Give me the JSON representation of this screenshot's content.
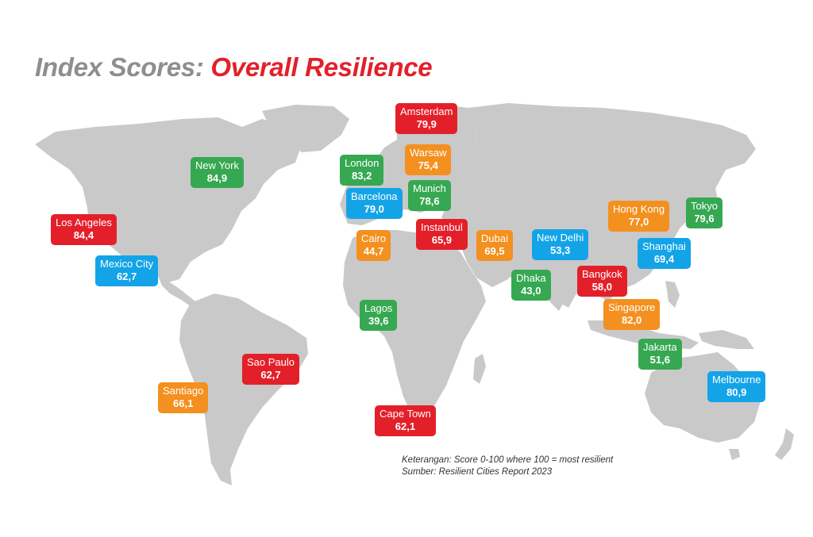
{
  "title": {
    "part1": "Index Scores:",
    "part2": "Overall Resilience"
  },
  "colors": {
    "red": "#e3202a",
    "green": "#36a852",
    "orange": "#f3901f",
    "blue": "#13a4e8",
    "land": "#c9c9ca"
  },
  "cities": [
    {
      "name": "Amsterdam",
      "score": "79,9",
      "color": "red"
    },
    {
      "name": "New York",
      "score": "84,9",
      "color": "green"
    },
    {
      "name": "London",
      "score": "83,2",
      "color": "green"
    },
    {
      "name": "Warsaw",
      "score": "75,4",
      "color": "orange"
    },
    {
      "name": "Barcelona",
      "score": "79,0",
      "color": "blue"
    },
    {
      "name": "Munich",
      "score": "78,6",
      "color": "green"
    },
    {
      "name": "Hong Kong",
      "score": "77,0",
      "color": "orange"
    },
    {
      "name": "Tokyo",
      "score": "79,6",
      "color": "green"
    },
    {
      "name": "Los Angeles",
      "score": "84,4",
      "color": "red"
    },
    {
      "name": "Instanbul",
      "score": "65,9",
      "color": "red"
    },
    {
      "name": "Cairo",
      "score": "44,7",
      "color": "orange"
    },
    {
      "name": "Dubai",
      "score": "69,5",
      "color": "orange"
    },
    {
      "name": "New Delhi",
      "score": "53,3",
      "color": "blue"
    },
    {
      "name": "Shanghai",
      "score": "69,4",
      "color": "blue"
    },
    {
      "name": "Mexico City",
      "score": "62,7",
      "color": "blue"
    },
    {
      "name": "Dhaka",
      "score": "43,0",
      "color": "green"
    },
    {
      "name": "Bangkok",
      "score": "58,0",
      "color": "red"
    },
    {
      "name": "Lagos",
      "score": "39,6",
      "color": "green"
    },
    {
      "name": "Singapore",
      "score": "82,0",
      "color": "orange"
    },
    {
      "name": "Jakarta",
      "score": "51,6",
      "color": "green"
    },
    {
      "name": "Sao Paulo",
      "score": "62,7",
      "color": "red"
    },
    {
      "name": "Santiago",
      "score": "66,1",
      "color": "orange"
    },
    {
      "name": "Melbourne",
      "score": "80,9",
      "color": "blue"
    },
    {
      "name": "Cape Town",
      "score": "62,1",
      "color": "red"
    }
  ],
  "notes": {
    "legend": "Keterangan: Score 0-100 where 100 = most resilient",
    "source": "Sumber: Resilient Cities Report 2023"
  }
}
